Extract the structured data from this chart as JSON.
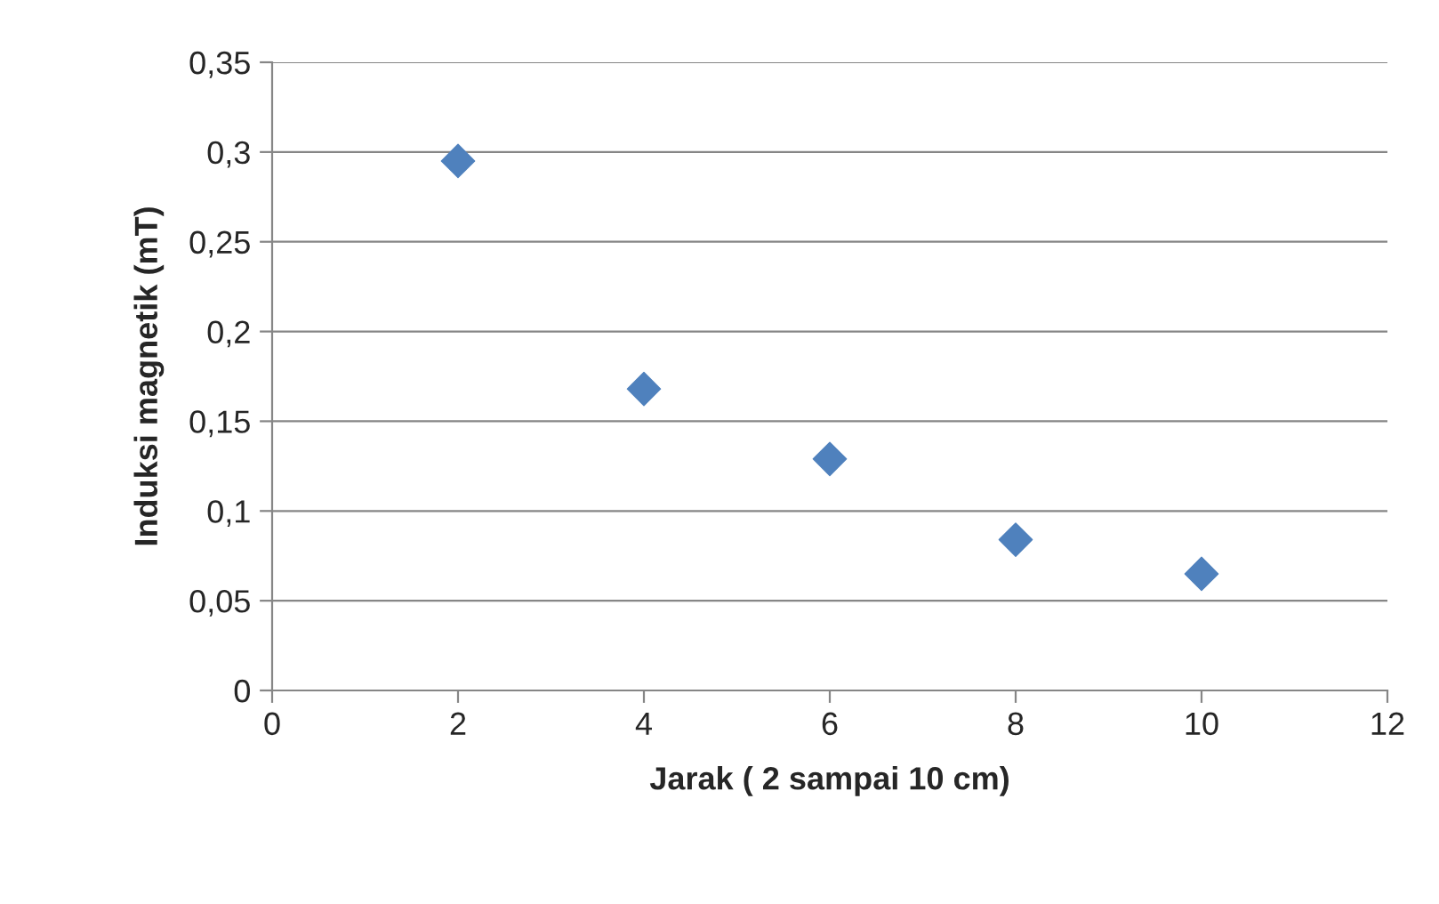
{
  "chart_data": {
    "type": "scatter",
    "xlabel": "Jarak ( 2 sampai 10 cm)",
    "ylabel": "Induksi magnetik (mT)",
    "x": [
      2,
      4,
      6,
      8,
      10
    ],
    "series": [
      {
        "color": "#4f81bd",
        "values": [
          0.295,
          0.168,
          0.129,
          0.084,
          0.065
        ]
      }
    ],
    "xlim": [
      0,
      12
    ],
    "xticks": [
      0,
      2,
      4,
      6,
      8,
      10,
      12
    ],
    "ylim": [
      0,
      0.35
    ],
    "yticks": [
      {
        "value": 0,
        "label": "0"
      },
      {
        "value": 0.05,
        "label": "0,05"
      },
      {
        "value": 0.1,
        "label": "0,1"
      },
      {
        "value": 0.15,
        "label": "0,15"
      },
      {
        "value": 0.2,
        "label": "0,2"
      },
      {
        "value": 0.25,
        "label": "0,25"
      },
      {
        "value": 0.3,
        "label": "0,3"
      },
      {
        "value": 0.35,
        "label": "0,35"
      }
    ],
    "grid": "y",
    "marker": "diamond",
    "legend": false
  }
}
